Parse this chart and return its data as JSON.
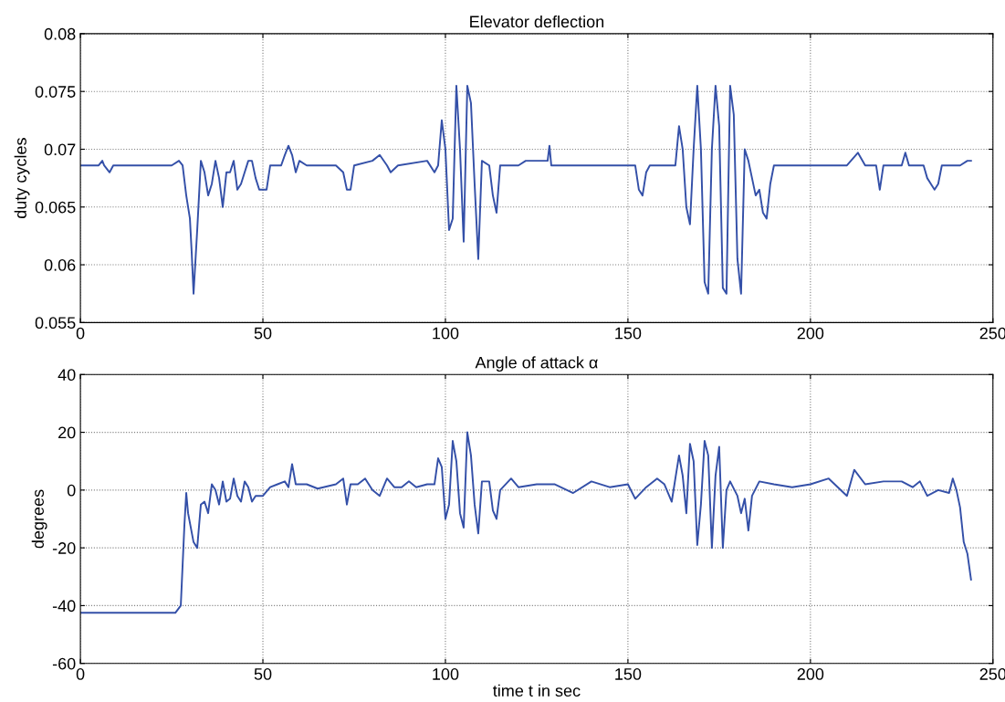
{
  "chart_data": [
    {
      "type": "line",
      "title": "Elevator deflection",
      "ylabel": "duty cycles",
      "xlim": [
        0,
        250
      ],
      "xticks": [
        0,
        50,
        100,
        150,
        200,
        250
      ],
      "ylim": [
        0.055,
        0.08
      ],
      "yticks": [
        {
          "value": 0.055,
          "label": "0.055"
        },
        {
          "value": 0.06,
          "label": "0.06"
        },
        {
          "value": 0.065,
          "label": "0.065"
        },
        {
          "value": 0.07,
          "label": "0.07"
        },
        {
          "value": 0.075,
          "label": "0.075"
        },
        {
          "value": 0.08,
          "label": "0.08"
        }
      ],
      "grid": true,
      "line_style": "solid",
      "series": [
        {
          "color": "#3450a8",
          "x": [
            0,
            5,
            6,
            6.5,
            8,
            9,
            25,
            27,
            28,
            29,
            30,
            30.5,
            31,
            32,
            33,
            34,
            35,
            36,
            37,
            38,
            39,
            40,
            41,
            42,
            43,
            44,
            45,
            46,
            47,
            48,
            49,
            51,
            52,
            55,
            56,
            57,
            58,
            59,
            60,
            62,
            70,
            72,
            73,
            74,
            75,
            80,
            82,
            84,
            85,
            87,
            95,
            97,
            98,
            99,
            100,
            101,
            102,
            103,
            104,
            105,
            106,
            107,
            108,
            109,
            110,
            112,
            113,
            114,
            115,
            120,
            122,
            128,
            128.5,
            129,
            152,
            153,
            154,
            155,
            156,
            163,
            164,
            165,
            166,
            167,
            168,
            169,
            170,
            171,
            172,
            173,
            174,
            175,
            176,
            177,
            178,
            179,
            180,
            181,
            182,
            183,
            184,
            185,
            186,
            187,
            188,
            189,
            190,
            210,
            213,
            215,
            218,
            219,
            220,
            225,
            226,
            227,
            231,
            232,
            233,
            234,
            235,
            236,
            241,
            243,
            244
          ],
          "values": [
            0.0686,
            0.0686,
            0.069,
            0.0686,
            0.068,
            0.0686,
            0.0686,
            0.069,
            0.0686,
            0.066,
            0.064,
            0.061,
            0.0575,
            0.063,
            0.069,
            0.068,
            0.066,
            0.067,
            0.069,
            0.0675,
            0.065,
            0.068,
            0.068,
            0.069,
            0.0665,
            0.067,
            0.068,
            0.069,
            0.069,
            0.0675,
            0.0665,
            0.0665,
            0.0686,
            0.0686,
            0.0695,
            0.0703,
            0.0695,
            0.068,
            0.069,
            0.0686,
            0.0686,
            0.068,
            0.0665,
            0.0665,
            0.0686,
            0.069,
            0.0695,
            0.0686,
            0.068,
            0.0686,
            0.069,
            0.068,
            0.0686,
            0.0725,
            0.07,
            0.063,
            0.064,
            0.0755,
            0.07,
            0.062,
            0.0755,
            0.074,
            0.067,
            0.0605,
            0.069,
            0.0686,
            0.066,
            0.0645,
            0.0686,
            0.0686,
            0.069,
            0.069,
            0.0703,
            0.0686,
            0.0686,
            0.0665,
            0.066,
            0.068,
            0.0686,
            0.0686,
            0.072,
            0.07,
            0.065,
            0.0635,
            0.07,
            0.0755,
            0.07,
            0.0585,
            0.0575,
            0.07,
            0.0755,
            0.072,
            0.058,
            0.0575,
            0.0755,
            0.073,
            0.0605,
            0.0575,
            0.07,
            0.069,
            0.0675,
            0.066,
            0.0665,
            0.0645,
            0.064,
            0.067,
            0.0686,
            0.0686,
            0.0697,
            0.0686,
            0.0686,
            0.0665,
            0.0686,
            0.0686,
            0.0697,
            0.0686,
            0.0686,
            0.0675,
            0.067,
            0.0665,
            0.067,
            0.0686,
            0.0686,
            0.069,
            0.069
          ]
        }
      ]
    },
    {
      "type": "line",
      "title": "Angle of attack α",
      "xlabel": "time t in sec",
      "ylabel": "degrees",
      "xlim": [
        0,
        250
      ],
      "xticks": [
        0,
        50,
        100,
        150,
        200,
        250
      ],
      "ylim": [
        -60,
        40
      ],
      "yticks": [
        -60,
        -40,
        -20,
        0,
        20,
        40
      ],
      "grid": true,
      "line_style": "solid",
      "series": [
        {
          "color": "#3450a8",
          "x": [
            0,
            26,
            27.5,
            28.5,
            29,
            29.5,
            31,
            32,
            33,
            34,
            35,
            36,
            37,
            38,
            39,
            40,
            41,
            42,
            43,
            44,
            45,
            46,
            47,
            48,
            50,
            52,
            54,
            56,
            57,
            58,
            59,
            62,
            65,
            70,
            72,
            73,
            74,
            76,
            78,
            80,
            82,
            84,
            86,
            88,
            90,
            92,
            95,
            97,
            98,
            99,
            100,
            101,
            102,
            103,
            104,
            105,
            106,
            107,
            108,
            109,
            110,
            112,
            113,
            114,
            115,
            118,
            120,
            125,
            130,
            135,
            140,
            145,
            150,
            152,
            155,
            158,
            160,
            162,
            163,
            164,
            165,
            166,
            167,
            168,
            169,
            170,
            171,
            172,
            173,
            174,
            175,
            176,
            177,
            178,
            180,
            181,
            182,
            183,
            184,
            186,
            190,
            195,
            200,
            205,
            210,
            212,
            215,
            220,
            225,
            228,
            230,
            232,
            235,
            238,
            239,
            240,
            241,
            242,
            243,
            244
          ],
          "values": [
            -42.5,
            -42.5,
            -40,
            -12,
            -1,
            -8,
            -18,
            -20,
            -5,
            -4,
            -8,
            2,
            0,
            -5,
            3,
            -4,
            -3,
            4,
            -2,
            -4,
            3,
            1,
            -4,
            -2,
            -2,
            1,
            2,
            3,
            1,
            9,
            2,
            2,
            0.5,
            2,
            4,
            -5,
            2,
            2,
            4,
            0,
            -2,
            4,
            1,
            1,
            3,
            1,
            2,
            2,
            11,
            8,
            -10,
            -5,
            17,
            10,
            -8,
            -13,
            20,
            12,
            -5,
            -15,
            3,
            3,
            -7,
            -10,
            0,
            4,
            1,
            2,
            2,
            -1,
            3,
            1,
            2,
            -3,
            1,
            4,
            2,
            -4,
            4,
            12,
            5,
            -8,
            16,
            10,
            -19,
            -5,
            17,
            12,
            -20,
            5,
            15,
            -20,
            0,
            3,
            -2,
            -8,
            -3,
            -14,
            -2,
            3,
            2,
            1,
            2,
            4,
            -2,
            7,
            2,
            3,
            3,
            1,
            3,
            -2,
            0,
            -1,
            4,
            0,
            -6,
            -18,
            -22,
            -31
          ]
        }
      ]
    }
  ]
}
